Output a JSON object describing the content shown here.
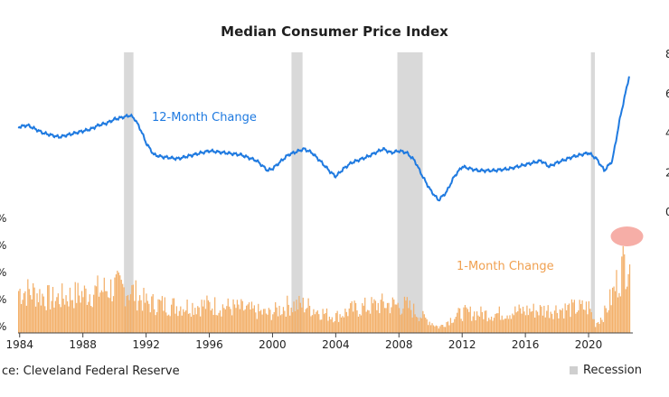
{
  "chart_data": {
    "type": "line",
    "title": "Median Consumer Price Index",
    "source": "ce: Cleveland Federal Reserve",
    "x_ticks": [
      "1984",
      "1988",
      "1992",
      "1996",
      "2000",
      "2004",
      "2008",
      "2012",
      "2016",
      "2020"
    ],
    "right_axis_ticks": [
      "8",
      "6",
      "4",
      "2",
      "0"
    ],
    "left_axis_ticks": [
      "%",
      "%",
      "%",
      "%",
      "%"
    ],
    "xlim": [
      1983.9,
      2022.8
    ],
    "ylim_12m": [
      0,
      8
    ],
    "ylim_1m": [
      0,
      0.9
    ],
    "legend": [
      "Recession"
    ],
    "recessions": [
      [
        1990.6,
        1991.2
      ],
      [
        2001.2,
        2001.9
      ],
      [
        2007.9,
        2009.5
      ],
      [
        2020.15,
        2020.4
      ]
    ],
    "series": [
      {
        "name": "12-Month Change",
        "color": "#1f7ae0",
        "points": [
          [
            1983.9,
            4.3
          ],
          [
            1984.5,
            4.4
          ],
          [
            1985.0,
            4.2
          ],
          [
            1985.5,
            4.0
          ],
          [
            1986.0,
            3.9
          ],
          [
            1986.5,
            3.8
          ],
          [
            1987.0,
            3.9
          ],
          [
            1987.5,
            4.0
          ],
          [
            1988.0,
            4.1
          ],
          [
            1988.5,
            4.2
          ],
          [
            1989.0,
            4.4
          ],
          [
            1989.5,
            4.5
          ],
          [
            1990.0,
            4.7
          ],
          [
            1990.5,
            4.8
          ],
          [
            1991.0,
            4.9
          ],
          [
            1991.3,
            4.7
          ],
          [
            1991.7,
            4.1
          ],
          [
            1992.0,
            3.5
          ],
          [
            1992.5,
            2.9
          ],
          [
            1993.0,
            2.8
          ],
          [
            1994.0,
            2.7
          ],
          [
            1995.0,
            2.9
          ],
          [
            1996.0,
            3.1
          ],
          [
            1997.0,
            3.0
          ],
          [
            1998.0,
            2.9
          ],
          [
            1999.0,
            2.6
          ],
          [
            1999.7,
            2.1
          ],
          [
            2000.0,
            2.2
          ],
          [
            2001.0,
            2.9
          ],
          [
            2002.0,
            3.2
          ],
          [
            2002.5,
            3.0
          ],
          [
            2003.0,
            2.6
          ],
          [
            2003.7,
            2.0
          ],
          [
            2004.0,
            1.8
          ],
          [
            2004.5,
            2.2
          ],
          [
            2005.0,
            2.5
          ],
          [
            2006.0,
            2.8
          ],
          [
            2007.0,
            3.2
          ],
          [
            2007.5,
            3.0
          ],
          [
            2008.0,
            3.1
          ],
          [
            2008.5,
            3.0
          ],
          [
            2009.0,
            2.6
          ],
          [
            2009.5,
            1.8
          ],
          [
            2010.0,
            1.1
          ],
          [
            2010.5,
            0.6
          ],
          [
            2011.0,
            1.0
          ],
          [
            2011.5,
            1.8
          ],
          [
            2012.0,
            2.3
          ],
          [
            2013.0,
            2.1
          ],
          [
            2014.0,
            2.1
          ],
          [
            2015.0,
            2.2
          ],
          [
            2016.0,
            2.4
          ],
          [
            2017.0,
            2.6
          ],
          [
            2017.5,
            2.3
          ],
          [
            2018.0,
            2.5
          ],
          [
            2019.0,
            2.8
          ],
          [
            2020.0,
            3.0
          ],
          [
            2020.5,
            2.7
          ],
          [
            2021.0,
            2.1
          ],
          [
            2021.5,
            2.6
          ],
          [
            2022.0,
            4.8
          ],
          [
            2022.6,
            7.0
          ]
        ]
      },
      {
        "name": "1-Month Change",
        "color": "#f3b06a",
        "points": [
          [
            1983.9,
            0.38
          ],
          [
            1985.0,
            0.36
          ],
          [
            1986.0,
            0.3
          ],
          [
            1987.0,
            0.33
          ],
          [
            1988.0,
            0.35
          ],
          [
            1989.0,
            0.38
          ],
          [
            1990.0,
            0.41
          ],
          [
            1991.0,
            0.38
          ],
          [
            1992.0,
            0.27
          ],
          [
            1994.0,
            0.24
          ],
          [
            1996.0,
            0.25
          ],
          [
            1998.0,
            0.22
          ],
          [
            1999.7,
            0.17
          ],
          [
            2001.0,
            0.25
          ],
          [
            2002.0,
            0.25
          ],
          [
            2003.5,
            0.16
          ],
          [
            2004.0,
            0.15
          ],
          [
            2005.0,
            0.21
          ],
          [
            2007.0,
            0.26
          ],
          [
            2008.5,
            0.24
          ],
          [
            2009.5,
            0.14
          ],
          [
            2010.5,
            0.05
          ],
          [
            2011.5,
            0.15
          ],
          [
            2012.0,
            0.18
          ],
          [
            2014.0,
            0.17
          ],
          [
            2016.0,
            0.2
          ],
          [
            2018.0,
            0.21
          ],
          [
            2020.0,
            0.23
          ],
          [
            2020.4,
            0.08
          ],
          [
            2021.0,
            0.18
          ],
          [
            2021.5,
            0.35
          ],
          [
            2022.0,
            0.55
          ],
          [
            2022.6,
            0.75
          ]
        ]
      }
    ]
  }
}
